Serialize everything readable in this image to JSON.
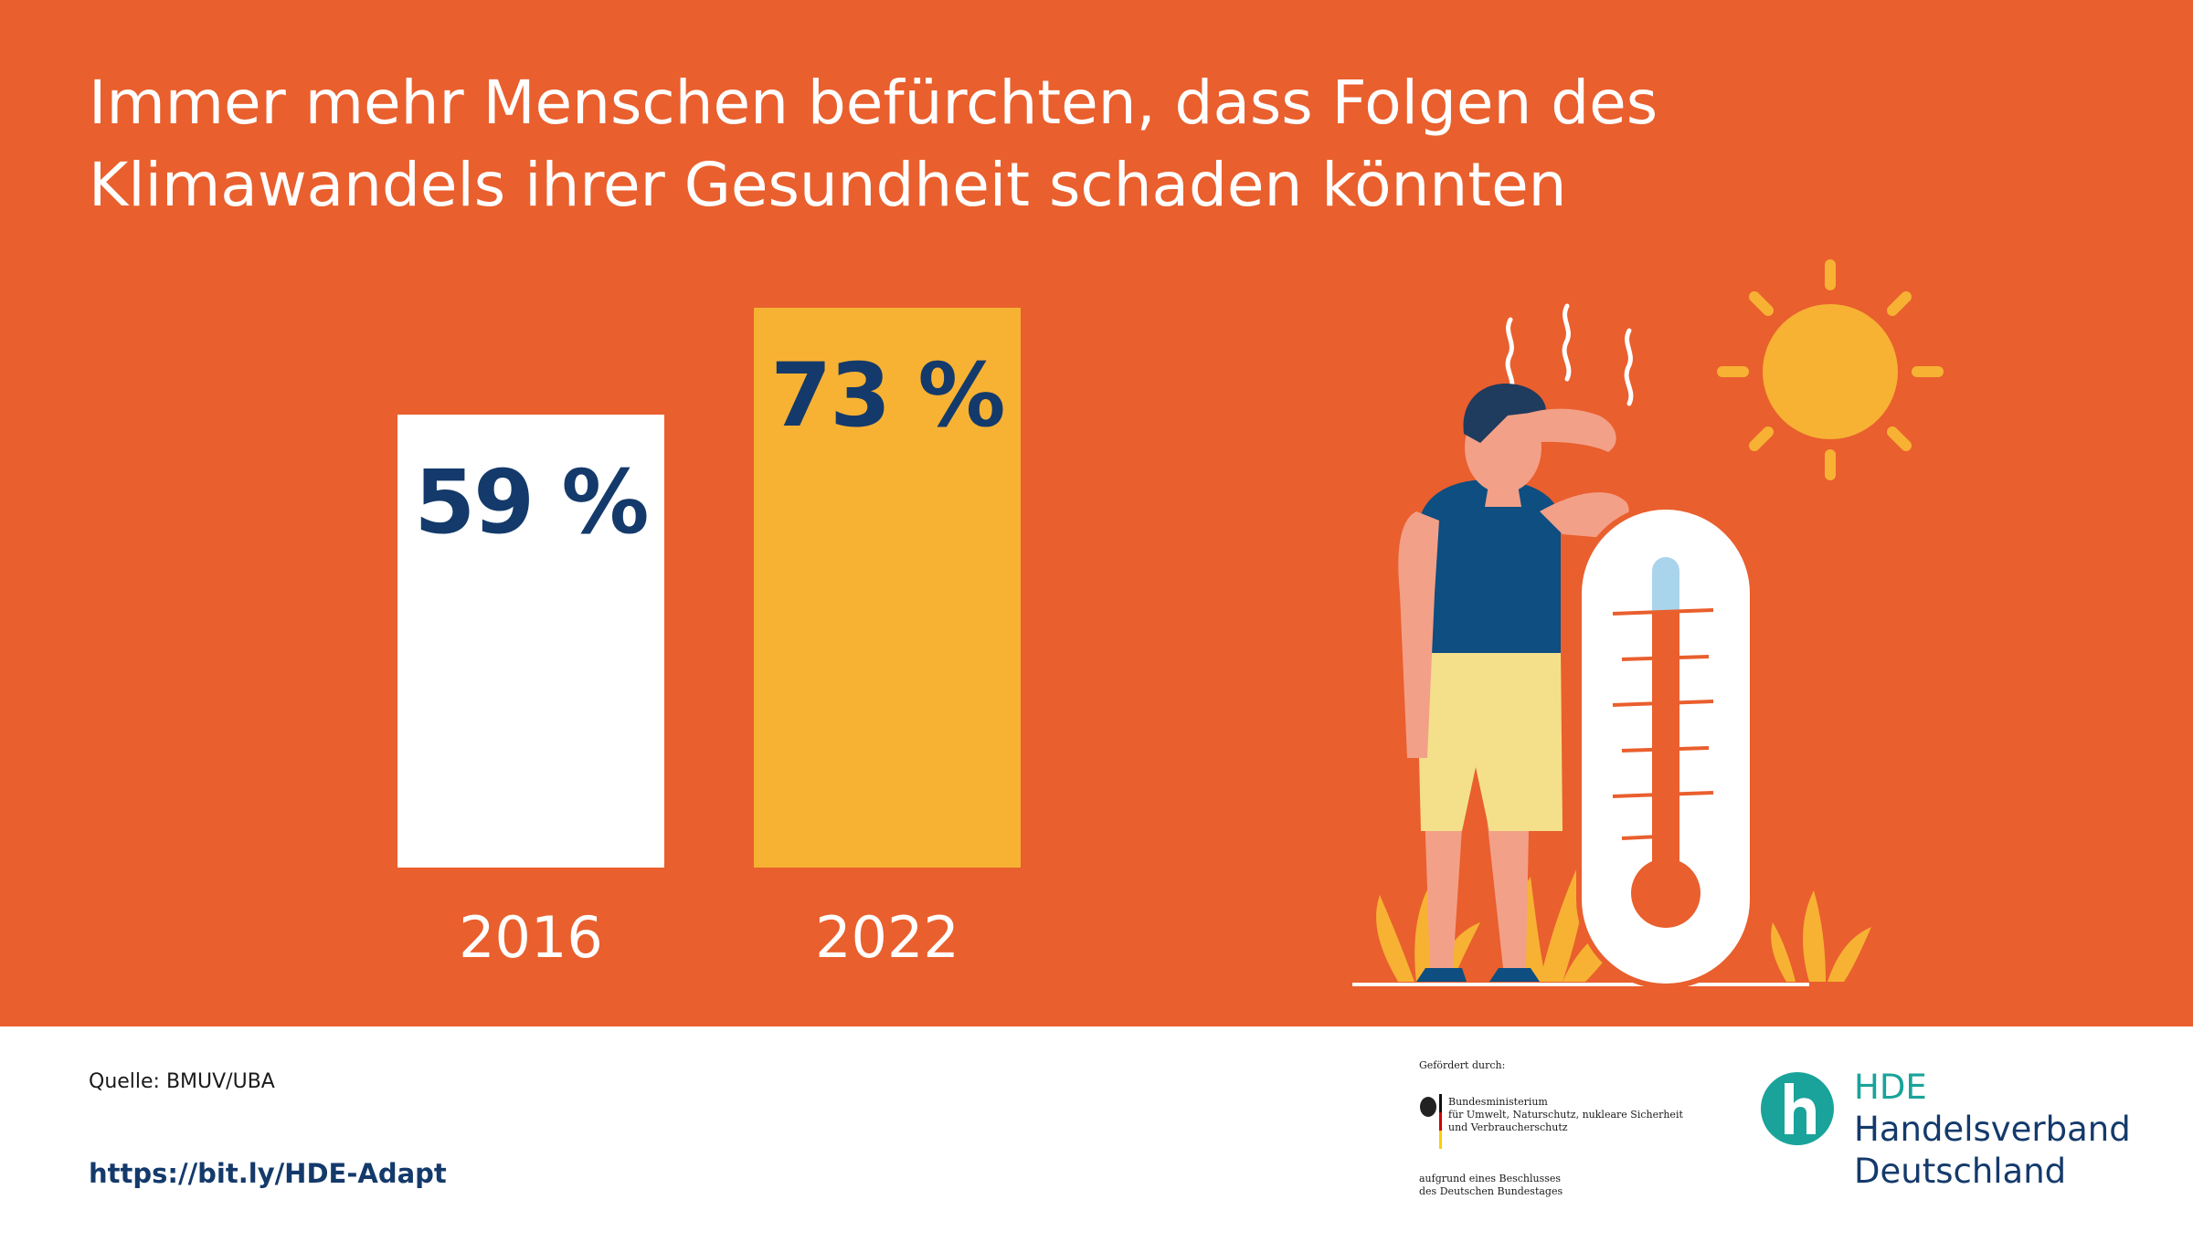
{
  "title": {
    "line1": "Immer mehr Menschen befürchten, dass Folgen des",
    "line2": "Klimawandels ihrer Gesundheit schaden könnten"
  },
  "chart_data": {
    "type": "bar",
    "categories": [
      "2016",
      "2022"
    ],
    "values": [
      59,
      73
    ],
    "value_labels": [
      "59 %",
      "73 %"
    ],
    "bar_colors": [
      "#FFFFFF",
      "#F7B234"
    ],
    "value_color": "#143A6B",
    "background": "#E95F2D",
    "ylim": [
      0,
      100
    ],
    "grid": false,
    "title": "Immer mehr Menschen befürchten, dass Folgen des Klimawandels ihrer Gesundheit schaden könnten",
    "xlabel": "",
    "ylabel": ""
  },
  "footer": {
    "source": "Quelle: BMUV/UBA",
    "link": "https://bit.ly/HDE-Adapt"
  },
  "funding": {
    "heading": "Gefördert durch:",
    "ministry_line1": "Bundesministerium",
    "ministry_line2": "für Umwelt, Naturschutz, nukleare Sicherheit",
    "ministry_line3": "und Verbraucherschutz",
    "note_line1": "aufgrund eines Beschlusses",
    "note_line2": "des Deutschen Bundestages"
  },
  "hde_logo": {
    "line1": "HDE",
    "line2": "Handelsverband",
    "line3": "Deutschland",
    "color": "#1AA39A"
  }
}
